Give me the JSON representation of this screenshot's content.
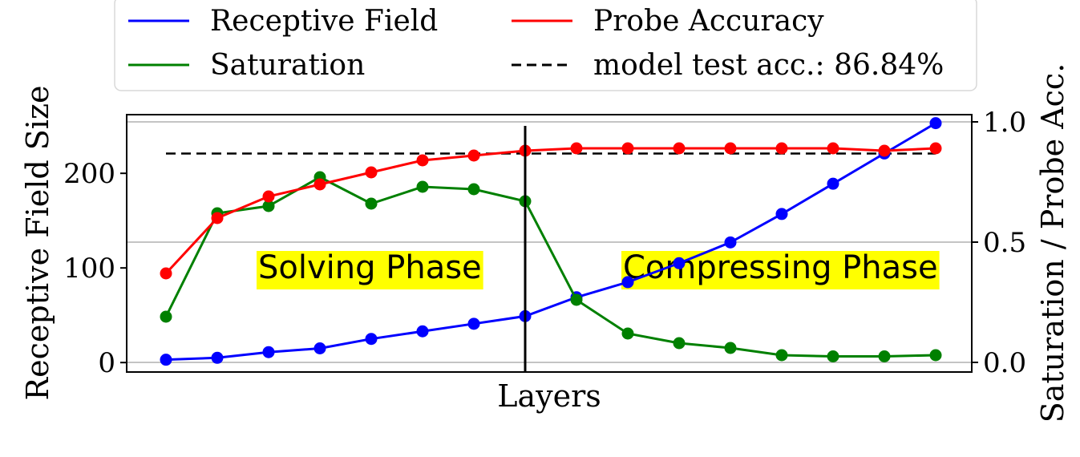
{
  "chart_data": {
    "type": "line",
    "xlabel": "Layers",
    "ylabel_left": "Receptive Field Size",
    "ylabel_right": "Saturation / Probe Acc.",
    "x": [
      1,
      2,
      3,
      4,
      5,
      6,
      7,
      8,
      9,
      10,
      11,
      12,
      13,
      14,
      15,
      16
    ],
    "ylim_left": [
      -10,
      262
    ],
    "ylim_right": [
      -0.04,
      1.03
    ],
    "yticks_left": [
      0,
      100,
      200
    ],
    "yticks_right": [
      0.0,
      0.5,
      1.0
    ],
    "ytick_labels_left": [
      "0",
      "100",
      "200"
    ],
    "ytick_labels_right": [
      "0.0",
      "0.5",
      "1.0"
    ],
    "grid": "horizontal at right-axis ticks",
    "legend_position": "top",
    "vertical_line_x": 8,
    "series": [
      {
        "name": "Receptive Field",
        "axis": "left",
        "color": "#0000ff",
        "values": [
          3,
          5,
          11,
          15,
          25,
          33,
          41,
          49,
          69,
          85,
          105,
          127,
          157,
          189,
          221,
          253
        ]
      },
      {
        "name": "Saturation",
        "axis": "right",
        "color": "#008000",
        "values": [
          0.19,
          0.62,
          0.65,
          0.77,
          0.66,
          0.73,
          0.72,
          0.67,
          0.26,
          0.12,
          0.08,
          0.06,
          0.03,
          0.025,
          0.025,
          0.03
        ]
      },
      {
        "name": "Probe Accuracy",
        "axis": "right",
        "color": "#ff0000",
        "values": [
          0.37,
          0.6,
          0.69,
          0.74,
          0.79,
          0.84,
          0.86,
          0.88,
          0.89,
          0.89,
          0.89,
          0.89,
          0.89,
          0.89,
          0.88,
          0.89
        ]
      }
    ],
    "reference_line": {
      "label": "model test acc.: 86.84%",
      "axis": "right",
      "value": 0.8684,
      "x_range": [
        1,
        16
      ],
      "color": "#000000",
      "style": "dashed"
    },
    "annotations": [
      {
        "text": "Solving Phase",
        "highlight": "#ffff00"
      },
      {
        "text": "Compressing Phase",
        "highlight": "#ffff00"
      }
    ]
  }
}
